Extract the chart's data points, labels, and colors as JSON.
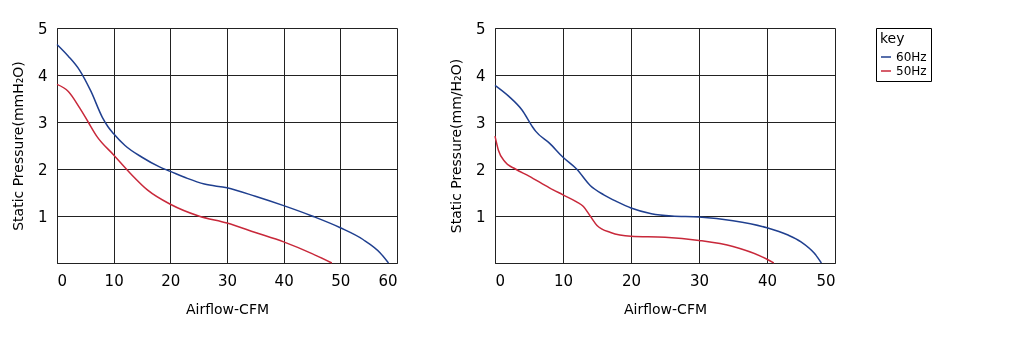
{
  "chart_data": [
    {
      "type": "line",
      "xlabel": "Airflow-CFM",
      "ylabel": "Static Pressure(mmH₂O)",
      "xlim": [
        0,
        60
      ],
      "ylim": [
        0,
        5
      ],
      "xticks": [
        0,
        10,
        20,
        30,
        40,
        50,
        60
      ],
      "yticks": [
        {
          "value": 0,
          "label": null
        },
        1,
        2,
        3,
        4,
        5
      ],
      "grid": true,
      "legend": "right",
      "marker": "none",
      "series": [
        {
          "name": "60Hz",
          "color": "#1f3f8f",
          "x": [
            0,
            2,
            4,
            6,
            8,
            9,
            10,
            12,
            15,
            18,
            20,
            23,
            26,
            30,
            35,
            40,
            45,
            50,
            54,
            57,
            58.5
          ],
          "values": [
            4.65,
            4.4,
            4.1,
            3.65,
            3.1,
            2.9,
            2.75,
            2.5,
            2.25,
            2.05,
            1.95,
            1.8,
            1.68,
            1.6,
            1.42,
            1.22,
            1.0,
            0.75,
            0.5,
            0.22,
            0
          ]
        },
        {
          "name": "50Hz",
          "color": "#c8283a",
          "x": [
            0,
            2,
            4,
            5.5,
            7,
            10,
            13,
            16,
            20,
            25,
            30,
            35,
            40,
            45,
            48.5
          ],
          "values": [
            3.8,
            3.65,
            3.3,
            3.0,
            2.7,
            2.3,
            1.9,
            1.55,
            1.25,
            1.0,
            0.85,
            0.65,
            0.45,
            0.2,
            0
          ]
        }
      ]
    },
    {
      "type": "line",
      "xlabel": "Airflow-CFM",
      "ylabel": "Static Pressure(mm/H₂O)",
      "xlim": [
        0,
        50
      ],
      "ylim": [
        0,
        5
      ],
      "xticks": [
        0,
        10,
        20,
        30,
        40,
        50
      ],
      "yticks": [
        {
          "value": 0,
          "label": null
        },
        1,
        2,
        3,
        4,
        5
      ],
      "grid": true,
      "legend": "right",
      "legend_title": "key",
      "marker": "none",
      "series": [
        {
          "name": "60Hz",
          "color": "#1f3f8f",
          "x": [
            0,
            2,
            4,
            5.5,
            6,
            8,
            10,
            12,
            14,
            16,
            18,
            20,
            23,
            26,
            30,
            35,
            40,
            43,
            45,
            47,
            48
          ],
          "values": [
            3.78,
            3.55,
            3.25,
            2.9,
            2.8,
            2.55,
            2.25,
            2.0,
            1.65,
            1.45,
            1.3,
            1.17,
            1.05,
            1.0,
            0.98,
            0.9,
            0.75,
            0.6,
            0.45,
            0.2,
            0
          ]
        },
        {
          "name": "50Hz",
          "color": "#c8283a",
          "x": [
            0,
            0.5,
            1.5,
            3,
            5,
            8,
            10,
            12,
            13,
            14,
            15,
            17,
            20,
            25,
            30,
            35,
            40,
            41
          ],
          "values": [
            2.7,
            2.4,
            2.15,
            2.0,
            1.85,
            1.6,
            1.45,
            1.3,
            1.2,
            1.0,
            0.8,
            0.65,
            0.57,
            0.55,
            0.48,
            0.35,
            0.08,
            0
          ]
        }
      ]
    }
  ]
}
